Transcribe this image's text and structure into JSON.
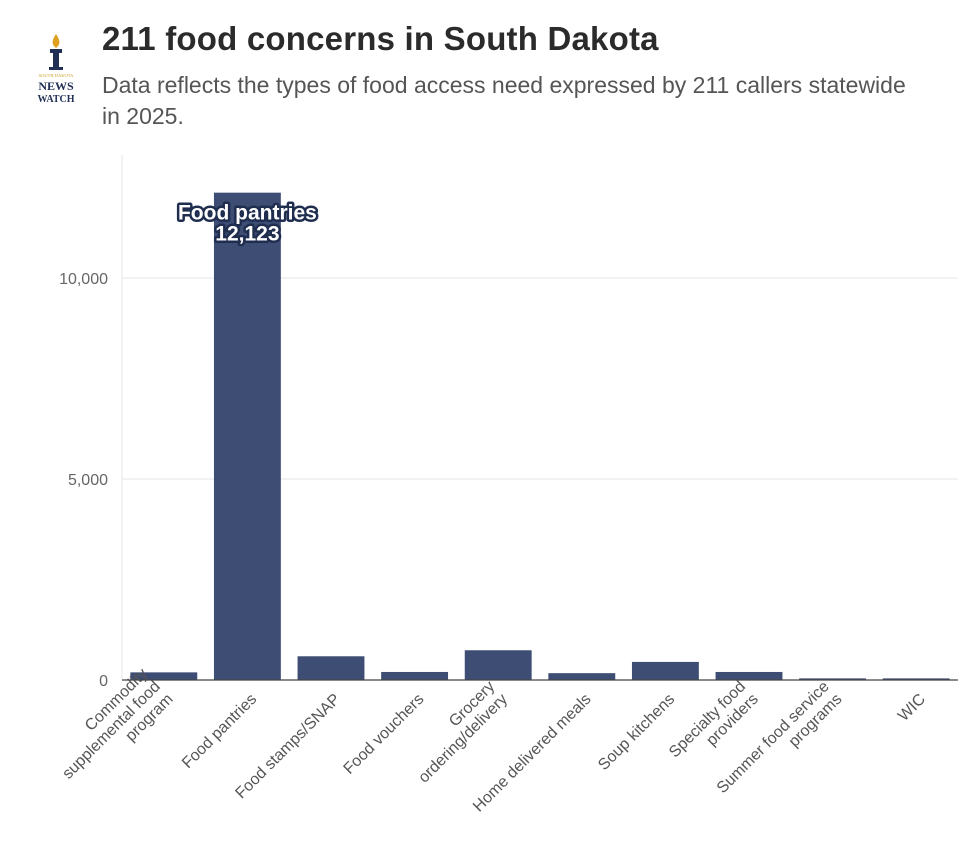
{
  "header": {
    "title": "211 food concerns in South Dakota",
    "subtitle": "Data reflects the types of food access need expressed by 211 callers statewide in 2025.",
    "logo_text": [
      "SOUTH DAKOTA",
      "NEWS",
      "WATCH"
    ]
  },
  "colors": {
    "bar": "#3e4d74",
    "grid": "#e6e6e6",
    "logo_gold": "#c9a227",
    "logo_navy": "#1f2f55"
  },
  "chart_data": {
    "type": "bar",
    "title": "211 food concerns in South Dakota",
    "categories": [
      [
        "Commodity",
        "supplemental food",
        "program"
      ],
      [
        "Food pantries"
      ],
      [
        "Food stamps/SNAP"
      ],
      [
        "Food vouchers"
      ],
      [
        "Grocery",
        "ordering/delivery"
      ],
      [
        "Home delivered meals"
      ],
      [
        "Soup kitchens"
      ],
      [
        "Specialty food",
        "providers"
      ],
      [
        "Summer food service",
        "programs"
      ],
      [
        "WIC"
      ]
    ],
    "values": [
      190,
      12123,
      590,
      200,
      740,
      170,
      450,
      200,
      40,
      40
    ],
    "ylim": [
      0,
      13000
    ],
    "yticks": [
      0,
      5000,
      10000
    ],
    "ytick_labels": [
      "0",
      "5,000",
      "10,000"
    ],
    "grid": true,
    "annotation": {
      "index": 1,
      "lines": [
        "Food pantries",
        "12,123"
      ]
    }
  }
}
